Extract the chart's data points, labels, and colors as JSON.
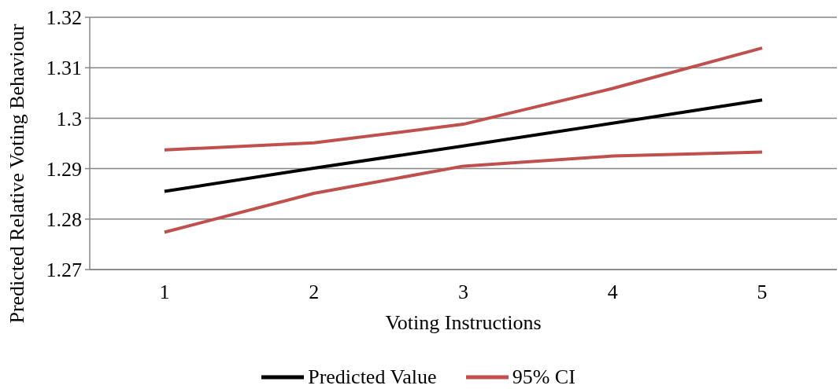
{
  "chart_data": {
    "type": "line",
    "xlabel": "Voting Instructions",
    "ylabel": "Predicted Relative Voting Behaviour",
    "categories": [
      "1",
      "2",
      "3",
      "4",
      "5"
    ],
    "series": [
      {
        "name": "Predicted Value",
        "color": "#000000",
        "values": [
          1.2855,
          1.2901,
          1.2945,
          1.299,
          1.3036
        ]
      },
      {
        "name": "95% CI",
        "color": "#c0504d",
        "values": [
          1.2937,
          1.2951,
          1.2988,
          1.3059,
          1.3139
        ]
      },
      {
        "color": "#c0504d",
        "values": [
          1.2774,
          1.2851,
          1.2905,
          1.2925,
          1.2933
        ]
      }
    ],
    "ylim": [
      1.27,
      1.32
    ],
    "yticks": [
      1.27,
      1.28,
      1.29,
      1.3,
      1.31,
      1.32
    ],
    "grid": "y",
    "legend": "bottom",
    "marker": "none",
    "line_style": "solid"
  }
}
